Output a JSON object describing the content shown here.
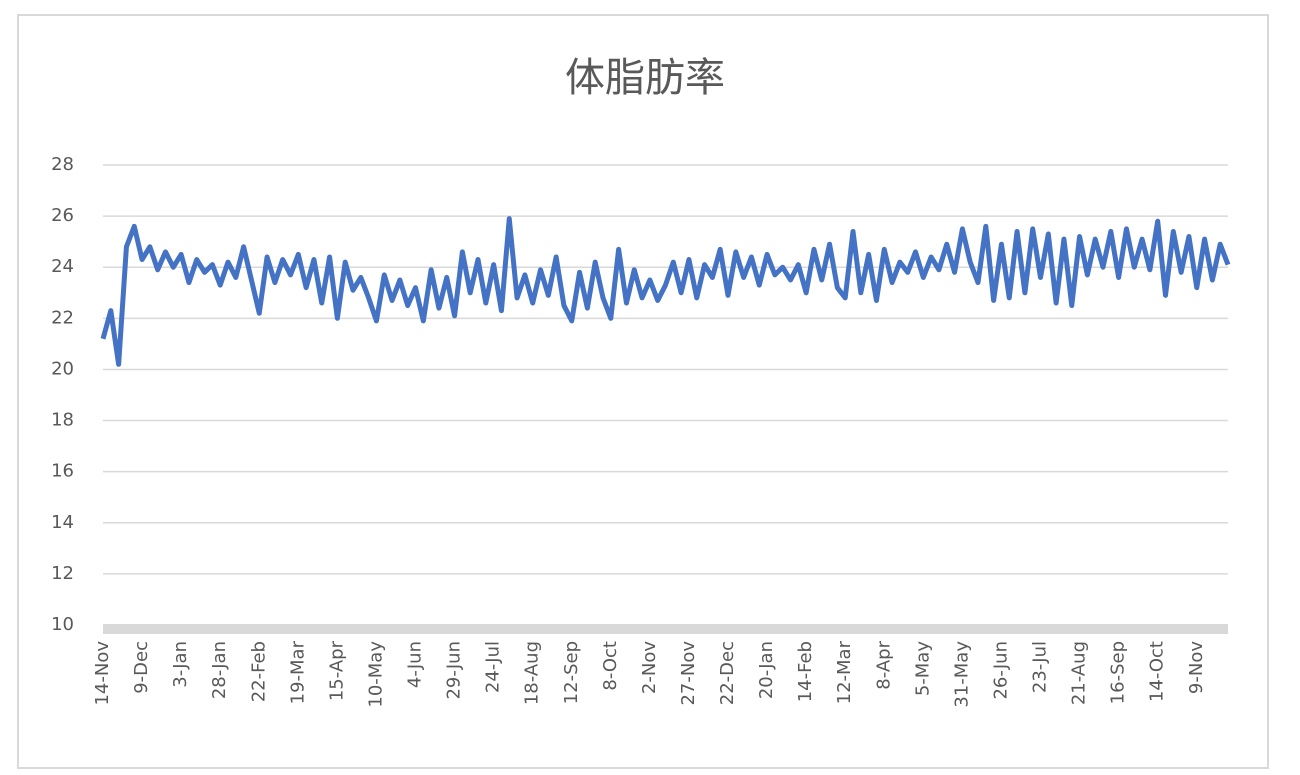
{
  "chart_data": {
    "type": "line",
    "title": "体脂肪率",
    "categories": [
      "14-Nov",
      null,
      null,
      null,
      null,
      "9-Dec",
      null,
      null,
      null,
      null,
      "3-Jan",
      null,
      null,
      null,
      null,
      "28-Jan",
      null,
      null,
      null,
      null,
      "22-Feb",
      null,
      null,
      null,
      null,
      "19-Mar",
      null,
      null,
      null,
      null,
      "15-Apr",
      null,
      null,
      null,
      null,
      "10-May",
      null,
      null,
      null,
      null,
      "4-Jun",
      null,
      null,
      null,
      null,
      "29-Jun",
      null,
      null,
      null,
      null,
      "24-Jul",
      null,
      null,
      null,
      null,
      "18-Aug",
      null,
      null,
      null,
      null,
      "12-Sep",
      null,
      null,
      null,
      null,
      "8-Oct",
      null,
      null,
      null,
      null,
      "2-Nov",
      null,
      null,
      null,
      null,
      "27-Nov",
      null,
      null,
      null,
      null,
      "22-Dec",
      null,
      null,
      null,
      null,
      "20-Jan",
      null,
      null,
      null,
      null,
      "14-Feb",
      null,
      null,
      null,
      null,
      "12-Mar",
      null,
      null,
      null,
      null,
      "8-Apr",
      null,
      null,
      null,
      null,
      "5-May",
      null,
      null,
      null,
      null,
      "31-May",
      null,
      null,
      null,
      null,
      "26-Jun",
      null,
      null,
      null,
      null,
      "23-Jul",
      null,
      null,
      null,
      null,
      "21-Aug",
      null,
      null,
      null,
      null,
      "16-Sep",
      null,
      null,
      null,
      null,
      "14-Oct",
      null,
      null,
      null,
      null,
      "9-Nov",
      null,
      null,
      null,
      null
    ],
    "values": [
      21.2,
      22.3,
      20.2,
      24.8,
      25.6,
      24.3,
      24.8,
      23.9,
      24.6,
      24.0,
      24.5,
      23.4,
      24.3,
      23.8,
      24.1,
      23.3,
      24.2,
      23.6,
      24.8,
      23.5,
      22.2,
      24.4,
      23.4,
      24.3,
      23.7,
      24.5,
      23.2,
      24.3,
      22.6,
      24.4,
      22.0,
      24.2,
      23.1,
      23.6,
      22.8,
      21.9,
      23.7,
      22.7,
      23.5,
      22.5,
      23.2,
      21.9,
      23.9,
      22.4,
      23.6,
      22.1,
      24.6,
      23.0,
      24.3,
      22.6,
      24.1,
      22.3,
      25.9,
      22.8,
      23.7,
      22.6,
      23.9,
      22.9,
      24.4,
      22.5,
      21.9,
      23.8,
      22.4,
      24.2,
      22.8,
      22.0,
      24.7,
      22.6,
      23.9,
      22.8,
      23.5,
      22.7,
      23.3,
      24.2,
      23.0,
      24.3,
      22.8,
      24.1,
      23.6,
      24.7,
      22.9,
      24.6,
      23.6,
      24.4,
      23.3,
      24.5,
      23.7,
      24.0,
      23.5,
      24.1,
      23.0,
      24.7,
      23.5,
      24.9,
      23.2,
      22.8,
      25.4,
      23.0,
      24.5,
      22.7,
      24.7,
      23.4,
      24.2,
      23.8,
      24.6,
      23.6,
      24.4,
      23.9,
      24.9,
      23.8,
      25.5,
      24.2,
      23.4,
      25.6,
      22.7,
      24.9,
      22.8,
      25.4,
      23.0,
      25.5,
      23.6,
      25.3,
      22.6,
      25.1,
      22.5,
      25.2,
      23.7,
      25.1,
      24.0,
      25.4,
      23.6,
      25.5,
      24.0,
      25.1,
      23.9,
      25.8,
      22.9,
      25.4,
      23.8,
      25.2,
      23.2,
      25.1,
      23.5,
      24.9,
      24.1
    ],
    "color": "#4472c4",
    "ylim": [
      10,
      28
    ],
    "yticks": [
      10,
      12,
      14,
      16,
      18,
      20,
      22,
      24,
      26,
      28
    ],
    "grid": true
  }
}
